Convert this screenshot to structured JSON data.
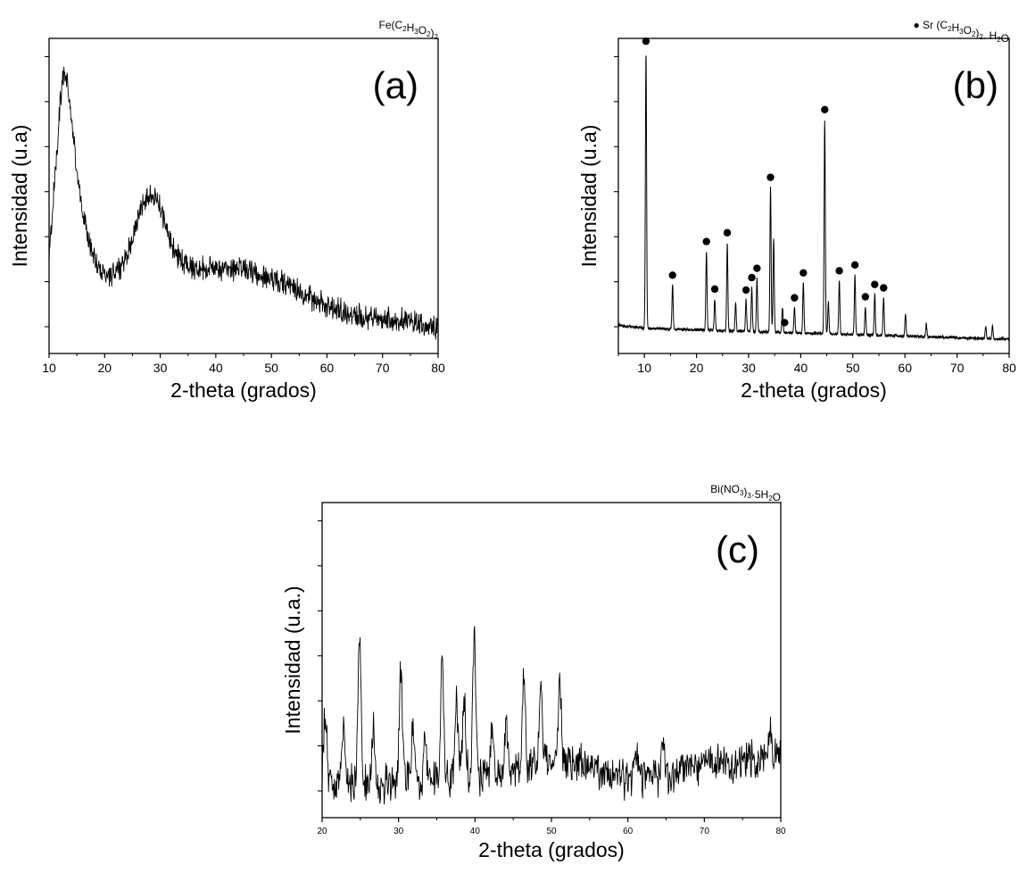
{
  "charts": [
    {
      "id": "a",
      "type": "line",
      "panel_label": "(a)",
      "formula": {
        "parts": [
          [
            "Fe(C",
            false
          ],
          [
            "2",
            true
          ],
          [
            "H",
            false
          ],
          [
            "3",
            true
          ],
          [
            "O",
            false
          ],
          [
            "2",
            true
          ],
          [
            ")",
            false
          ],
          [
            "2",
            true
          ]
        ]
      },
      "marker_symbol": false,
      "xlabel": "2-theta (grados)",
      "ylabel": "Intensidad (u.a)",
      "xlim": [
        10,
        80
      ],
      "xticks": [
        10,
        20,
        30,
        40,
        50,
        60,
        70,
        80
      ],
      "ylim": [
        0,
        1
      ],
      "noise": 0.03,
      "baseline": [
        [
          10,
          0.3
        ],
        [
          11,
          0.55
        ],
        [
          12,
          0.8
        ],
        [
          12.6,
          0.88
        ],
        [
          13.3,
          0.86
        ],
        [
          14,
          0.75
        ],
        [
          15,
          0.58
        ],
        [
          16,
          0.45
        ],
        [
          17,
          0.37
        ],
        [
          18,
          0.31
        ],
        [
          19,
          0.27
        ],
        [
          20,
          0.25
        ],
        [
          21,
          0.25
        ],
        [
          22,
          0.26
        ],
        [
          23,
          0.28
        ],
        [
          24,
          0.31
        ],
        [
          25,
          0.37
        ],
        [
          26,
          0.43
        ],
        [
          27,
          0.48
        ],
        [
          28,
          0.51
        ],
        [
          29,
          0.5
        ],
        [
          30,
          0.46
        ],
        [
          31,
          0.4
        ],
        [
          32,
          0.35
        ],
        [
          33,
          0.31
        ],
        [
          34,
          0.29
        ],
        [
          36,
          0.27
        ],
        [
          40,
          0.27
        ],
        [
          45,
          0.27
        ],
        [
          50,
          0.24
        ],
        [
          55,
          0.2
        ],
        [
          60,
          0.15
        ],
        [
          65,
          0.12
        ],
        [
          70,
          0.11
        ],
        [
          75,
          0.1
        ],
        [
          80,
          0.08
        ]
      ],
      "peaks": [],
      "markers": []
    },
    {
      "id": "b",
      "type": "line",
      "panel_label": "(b)",
      "formula": {
        "parts": [
          [
            "Sr (C",
            false
          ],
          [
            "2",
            true
          ],
          [
            "H",
            false
          ],
          [
            "3",
            true
          ],
          [
            "O",
            false
          ],
          [
            "2",
            true
          ],
          [
            ")",
            false
          ],
          [
            "2",
            true
          ],
          [
            ". H",
            false
          ],
          [
            "2",
            true
          ],
          [
            "O",
            false
          ]
        ]
      },
      "marker_symbol": true,
      "xlabel": "2-theta (grados)",
      "ylabel": "Intensidad (u.a)",
      "xlim": [
        5,
        80
      ],
      "xticks": [
        10,
        20,
        30,
        40,
        50,
        60,
        70,
        80
      ],
      "ylim": [
        0,
        1
      ],
      "noise": 0.004,
      "baseline": [
        [
          5,
          0.09
        ],
        [
          10,
          0.08
        ],
        [
          20,
          0.075
        ],
        [
          30,
          0.07
        ],
        [
          40,
          0.065
        ],
        [
          50,
          0.06
        ],
        [
          60,
          0.055
        ],
        [
          70,
          0.05
        ],
        [
          80,
          0.045
        ]
      ],
      "peaks": [
        [
          10.3,
          0.88
        ],
        [
          15.4,
          0.14
        ],
        [
          21.9,
          0.25
        ],
        [
          23.5,
          0.1
        ],
        [
          25.9,
          0.28
        ],
        [
          27.5,
          0.09
        ],
        [
          29.5,
          0.1
        ],
        [
          30.6,
          0.14
        ],
        [
          31.6,
          0.17
        ],
        [
          34.2,
          0.46
        ],
        [
          34.8,
          0.3
        ],
        [
          36.5,
          0.08
        ],
        [
          38.8,
          0.08
        ],
        [
          40.5,
          0.16
        ],
        [
          44.6,
          0.68
        ],
        [
          45.3,
          0.1
        ],
        [
          47.4,
          0.17
        ],
        [
          50.4,
          0.19
        ],
        [
          52.4,
          0.09
        ],
        [
          54.2,
          0.13
        ],
        [
          55.9,
          0.12
        ],
        [
          60.1,
          0.07
        ],
        [
          64.1,
          0.04
        ],
        [
          75.5,
          0.04
        ],
        [
          76.8,
          0.04
        ]
      ],
      "markers": [
        10.3,
        15.4,
        21.9,
        23.5,
        25.9,
        29.5,
        30.6,
        31.6,
        34.2,
        36.9,
        38.8,
        40.5,
        44.6,
        47.4,
        50.4,
        52.4,
        54.2,
        55.9
      ]
    },
    {
      "id": "c",
      "type": "line",
      "panel_label": "(c)",
      "formula": {
        "parts": [
          [
            "Bi(NO",
            false
          ],
          [
            "3",
            true
          ],
          [
            ")",
            false
          ],
          [
            "3",
            true
          ],
          [
            "·5H",
            false
          ],
          [
            "2",
            true
          ],
          [
            "O",
            false
          ]
        ]
      },
      "marker_symbol": false,
      "xlabel": "2-theta (grados)",
      "ylabel": "Intensidad (u.a.)",
      "xlim": [
        20,
        80
      ],
      "xticks": [
        20,
        30,
        40,
        50,
        60,
        70,
        80
      ],
      "ylim": [
        0,
        1
      ],
      "noise": 0.05,
      "baseline": [
        [
          20,
          0.1
        ],
        [
          25,
          0.1
        ],
        [
          30,
          0.12
        ],
        [
          35,
          0.12
        ],
        [
          40,
          0.13
        ],
        [
          45,
          0.15
        ],
        [
          50,
          0.18
        ],
        [
          55,
          0.16
        ],
        [
          60,
          0.12
        ],
        [
          65,
          0.14
        ],
        [
          70,
          0.17
        ],
        [
          75,
          0.18
        ],
        [
          80,
          0.2
        ]
      ],
      "peaks": [
        [
          20.4,
          0.24
        ],
        [
          22.7,
          0.18
        ],
        [
          24.9,
          0.48
        ],
        [
          26.7,
          0.17
        ],
        [
          30.3,
          0.33
        ],
        [
          31.9,
          0.17
        ],
        [
          33.5,
          0.15
        ],
        [
          35.7,
          0.38
        ],
        [
          37.6,
          0.23
        ],
        [
          38.6,
          0.25
        ],
        [
          39.9,
          0.44
        ],
        [
          42.2,
          0.15
        ],
        [
          44.1,
          0.14
        ],
        [
          46.4,
          0.28
        ],
        [
          48.6,
          0.24
        ],
        [
          51.1,
          0.26
        ],
        [
          61,
          0.1
        ],
        [
          64.6,
          0.1
        ],
        [
          78.6,
          0.07
        ]
      ],
      "markers": []
    }
  ]
}
